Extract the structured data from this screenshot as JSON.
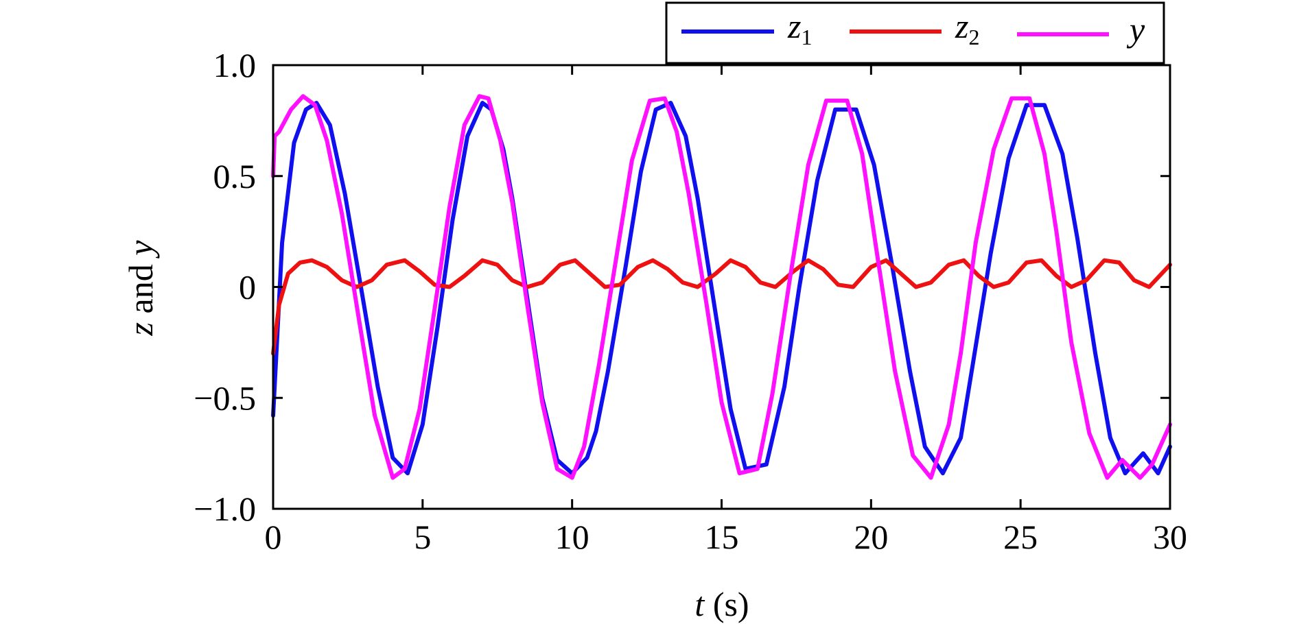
{
  "chart_data": {
    "type": "line",
    "xlabel_italic": "t",
    "xlabel_rest": " (s)",
    "ylabel_italic_1": "z",
    "ylabel_mid": " and ",
    "ylabel_italic_2": "y",
    "xlim": [
      0,
      30
    ],
    "ylim": [
      -1.0,
      1.0
    ],
    "x_ticks": [
      {
        "value": 0,
        "label": "0"
      },
      {
        "value": 5,
        "label": "5"
      },
      {
        "value": 10,
        "label": "10"
      },
      {
        "value": 15,
        "label": "15"
      },
      {
        "value": 20,
        "label": "20"
      },
      {
        "value": 25,
        "label": "25"
      },
      {
        "value": 30,
        "label": "30"
      }
    ],
    "y_ticks": [
      {
        "value": 1.0,
        "label": "1.0"
      },
      {
        "value": 0.5,
        "label": "0.5"
      },
      {
        "value": 0,
        "label": "0"
      },
      {
        "value": -0.5,
        "label": "−0.5"
      },
      {
        "value": -1.0,
        "label": "−1.0"
      }
    ],
    "grid": false,
    "legend_position": "top-right, above plot",
    "series": [
      {
        "name_base": "z",
        "name_sub": "1",
        "color": "#1010ee",
        "x": [
          0,
          0.3,
          0.7,
          1.1,
          1.45,
          1.9,
          2.4,
          3.0,
          3.5,
          4.0,
          4.5,
          5.0,
          5.5,
          6.0,
          6.5,
          7.0,
          7.3,
          7.7,
          8.0,
          8.5,
          9.0,
          9.5,
          10.0,
          10.5,
          10.8,
          11.2,
          11.8,
          12.3,
          12.8,
          13.3,
          13.8,
          14.2,
          14.8,
          15.3,
          15.8,
          16.5,
          17.1,
          17.6,
          18.2,
          18.8,
          19.5,
          20.1,
          20.7,
          21.3,
          21.8,
          22.4,
          23.0,
          23.4,
          24.0,
          24.6,
          25.2,
          25.8,
          26.4,
          26.9,
          27.5,
          28.0,
          28.5,
          29.1,
          29.6,
          30.0
        ],
        "y": [
          -0.58,
          0.2,
          0.65,
          0.8,
          0.83,
          0.73,
          0.42,
          -0.05,
          -0.45,
          -0.77,
          -0.84,
          -0.62,
          -0.18,
          0.3,
          0.68,
          0.83,
          0.8,
          0.62,
          0.4,
          -0.05,
          -0.5,
          -0.78,
          -0.84,
          -0.77,
          -0.65,
          -0.38,
          0.1,
          0.52,
          0.8,
          0.83,
          0.68,
          0.4,
          -0.12,
          -0.55,
          -0.82,
          -0.8,
          -0.45,
          0.0,
          0.48,
          0.8,
          0.8,
          0.55,
          0.1,
          -0.38,
          -0.72,
          -0.84,
          -0.68,
          -0.35,
          0.15,
          0.58,
          0.82,
          0.82,
          0.6,
          0.22,
          -0.3,
          -0.68,
          -0.84,
          -0.75,
          -0.84,
          -0.72
        ]
      },
      {
        "name_base": "z",
        "name_sub": "2",
        "color": "#ee1111",
        "x": [
          0,
          0.2,
          0.5,
          0.9,
          1.3,
          1.8,
          2.3,
          2.8,
          3.3,
          3.8,
          4.4,
          4.9,
          5.4,
          5.9,
          6.4,
          7.0,
          7.5,
          8.0,
          8.5,
          9.0,
          9.6,
          10.1,
          10.6,
          11.1,
          11.6,
          12.2,
          12.7,
          13.2,
          13.7,
          14.2,
          14.8,
          15.3,
          15.8,
          16.3,
          16.8,
          17.4,
          17.9,
          18.4,
          18.9,
          19.4,
          20.0,
          20.5,
          21.0,
          21.5,
          22.0,
          22.6,
          23.1,
          23.6,
          24.1,
          24.6,
          25.2,
          25.7,
          26.2,
          26.7,
          27.2,
          27.8,
          28.3,
          28.8,
          29.3,
          30.0
        ],
        "y": [
          -0.3,
          -0.08,
          0.06,
          0.11,
          0.12,
          0.09,
          0.03,
          0.0,
          0.03,
          0.1,
          0.12,
          0.07,
          0.01,
          0.0,
          0.05,
          0.12,
          0.1,
          0.03,
          0.0,
          0.02,
          0.1,
          0.12,
          0.06,
          0.0,
          0.01,
          0.09,
          0.12,
          0.08,
          0.02,
          0.0,
          0.06,
          0.12,
          0.09,
          0.02,
          0.0,
          0.07,
          0.12,
          0.08,
          0.01,
          0.0,
          0.09,
          0.12,
          0.06,
          0.0,
          0.02,
          0.1,
          0.12,
          0.05,
          0.0,
          0.02,
          0.11,
          0.12,
          0.05,
          0.0,
          0.03,
          0.12,
          0.11,
          0.03,
          0.0,
          0.1
        ]
      },
      {
        "name_base": "y",
        "name_sub": "",
        "color": "#ff10ff",
        "x": [
          0,
          0.05,
          0.2,
          0.6,
          1.0,
          1.4,
          1.8,
          2.3,
          2.9,
          3.4,
          4.0,
          4.4,
          4.9,
          5.4,
          5.9,
          6.4,
          6.9,
          7.2,
          7.6,
          8.0,
          8.5,
          9.0,
          9.5,
          10.0,
          10.4,
          10.9,
          11.5,
          12.0,
          12.6,
          13.1,
          13.5,
          13.9,
          14.5,
          15.0,
          15.6,
          16.2,
          16.7,
          17.3,
          17.9,
          18.5,
          19.2,
          19.7,
          20.2,
          20.8,
          21.4,
          22.0,
          22.6,
          23.0,
          23.5,
          24.1,
          24.7,
          25.3,
          25.8,
          26.2,
          26.7,
          27.3,
          27.9,
          28.4,
          29.0,
          29.4,
          29.8,
          30.0
        ],
        "y": [
          0.5,
          0.68,
          0.7,
          0.8,
          0.86,
          0.82,
          0.66,
          0.33,
          -0.17,
          -0.58,
          -0.86,
          -0.82,
          -0.55,
          -0.1,
          0.36,
          0.73,
          0.86,
          0.85,
          0.66,
          0.38,
          -0.08,
          -0.52,
          -0.82,
          -0.86,
          -0.72,
          -0.35,
          0.15,
          0.57,
          0.84,
          0.85,
          0.7,
          0.42,
          -0.08,
          -0.52,
          -0.84,
          -0.82,
          -0.48,
          0.05,
          0.55,
          0.84,
          0.84,
          0.6,
          0.15,
          -0.38,
          -0.76,
          -0.86,
          -0.62,
          -0.3,
          0.2,
          0.62,
          0.85,
          0.85,
          0.6,
          0.25,
          -0.25,
          -0.66,
          -0.86,
          -0.78,
          -0.86,
          -0.8,
          -0.68,
          -0.62
        ]
      }
    ]
  }
}
